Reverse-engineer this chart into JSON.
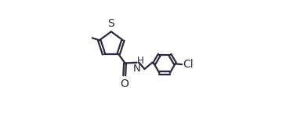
{
  "background_color": "#ffffff",
  "line_color": "#2a2a3a",
  "text_color": "#2a2a3a",
  "line_width": 1.6,
  "font_size": 9.5,
  "figsize": [
    3.93,
    1.44
  ],
  "dpi": 100,
  "xlim": [
    0.0,
    1.0
  ],
  "ylim": [
    0.05,
    0.95
  ]
}
